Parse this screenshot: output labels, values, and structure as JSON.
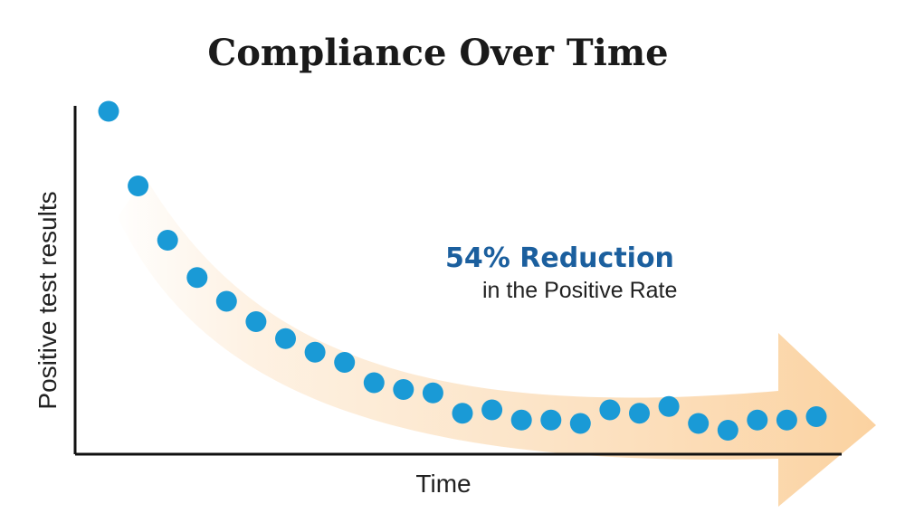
{
  "chart_data": {
    "type": "scatter",
    "title": "Compliance Over Time",
    "xlabel": "Time",
    "ylabel": "Positive test results",
    "annotation": {
      "headline": "54% Reduction",
      "subtext": "in the Positive Rate"
    },
    "grid": false,
    "x_ticks_shown": false,
    "y_ticks_shown": false,
    "x": [
      1,
      2,
      3,
      4,
      5,
      6,
      7,
      8,
      9,
      10,
      11,
      12,
      13,
      14,
      15,
      16,
      17,
      18,
      19,
      20,
      21,
      22,
      23,
      24,
      25
    ],
    "values": [
      100,
      78,
      62,
      51,
      44,
      38,
      33,
      29,
      26,
      20,
      18,
      17,
      11,
      12,
      9,
      9,
      8,
      12,
      11,
      13,
      8,
      6,
      9,
      9,
      10
    ],
    "xlim": [
      0,
      28
    ],
    "ylim": [
      0,
      100
    ],
    "colors": {
      "points": "#1a9ad6",
      "arrow": "#fbd9b0",
      "headline": "#1b5f9e",
      "axes": "#111111"
    }
  }
}
